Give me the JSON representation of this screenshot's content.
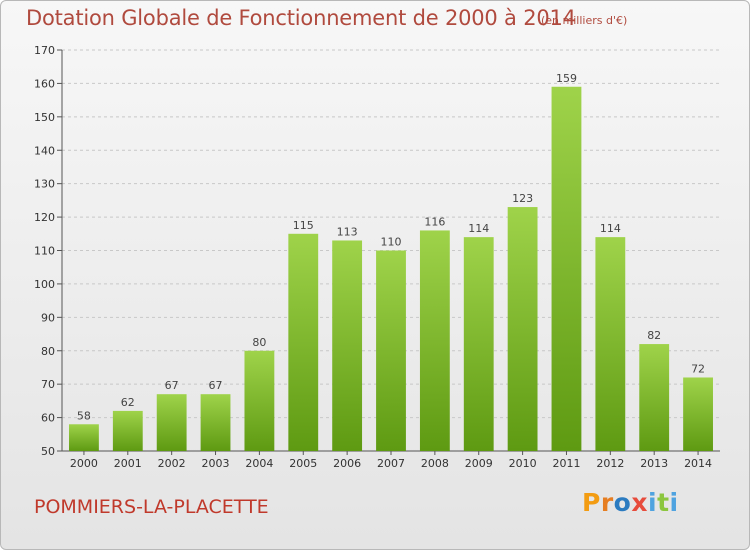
{
  "header": {
    "title": "Dotation Globale de Fonctionnement de 2000 à 2014",
    "subtitle": "(en milliers d'€)"
  },
  "footer": {
    "commune": "POMMIERS-LA-PLACETTE",
    "logo": "Proxiti"
  },
  "colors": {
    "bar_top": "#9fd34a",
    "bar_bottom": "#5e9a12",
    "title": "#b04a3e"
  },
  "chart_data": {
    "type": "bar",
    "title": "Dotation Globale de Fonctionnement de 2000 à 2014",
    "subtitle": "(en milliers d'€)",
    "xlabel": "",
    "ylabel": "",
    "categories": [
      "2000",
      "2001",
      "2002",
      "2003",
      "2004",
      "2005",
      "2006",
      "2007",
      "2008",
      "2009",
      "2010",
      "2011",
      "2012",
      "2013",
      "2014"
    ],
    "values": [
      58,
      62,
      67,
      67,
      80,
      115,
      113,
      110,
      116,
      114,
      123,
      159,
      114,
      82,
      72
    ],
    "ylim": [
      50,
      170
    ],
    "yticks": [
      50,
      60,
      70,
      80,
      90,
      100,
      110,
      120,
      130,
      140,
      150,
      160,
      170
    ],
    "grid": true
  }
}
